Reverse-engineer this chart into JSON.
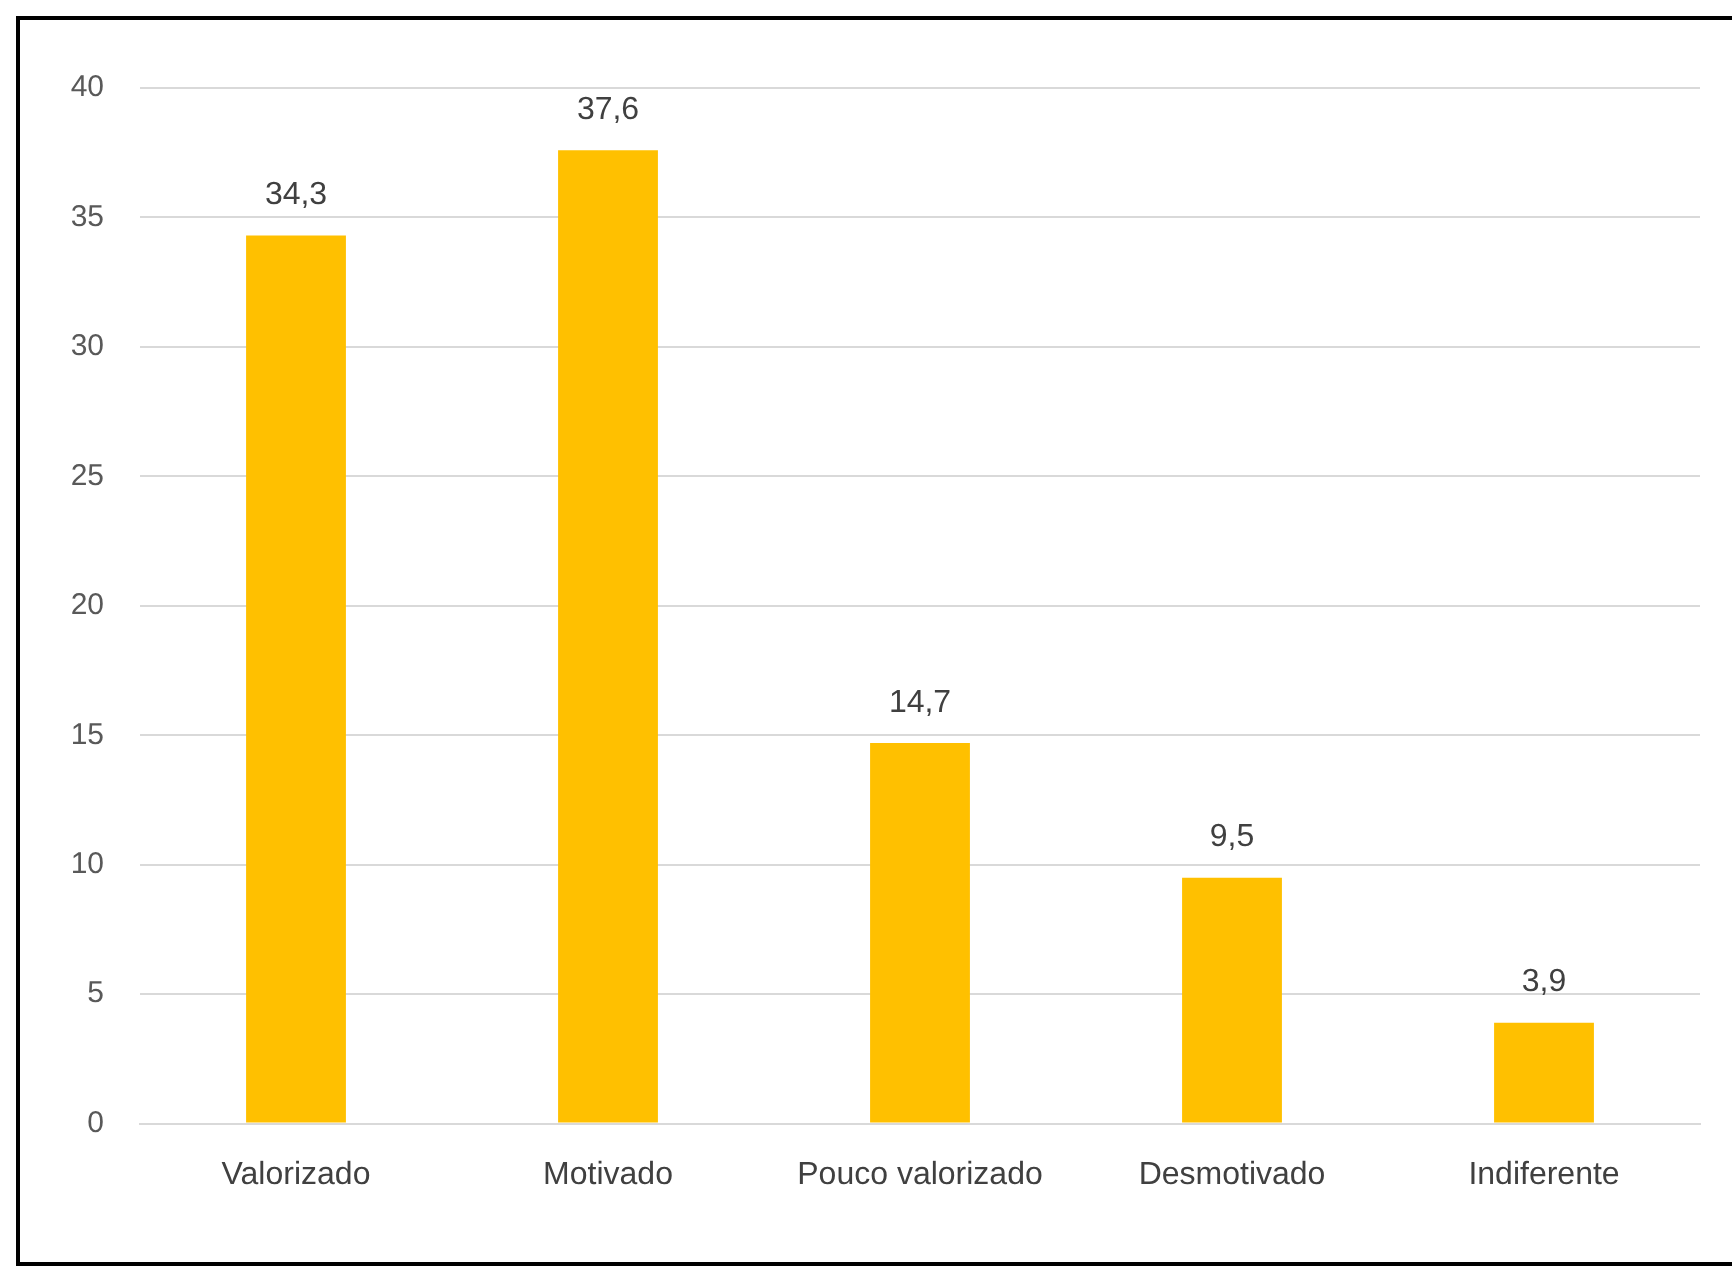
{
  "chart_data": {
    "type": "bar",
    "categories": [
      "Valorizado",
      "Motivado",
      "Pouco valorizado",
      "Desmotivado",
      "Indiferente"
    ],
    "values": [
      34.3,
      37.6,
      14.7,
      9.5,
      3.9
    ],
    "value_labels": [
      "34,3",
      "37,6",
      "14,7",
      "9,5",
      "3,9"
    ],
    "color": "#ffc000",
    "ylim": [
      0,
      40
    ],
    "yticks": [
      0,
      5,
      10,
      15,
      20,
      25,
      30,
      35,
      40
    ],
    "grid": "y"
  }
}
